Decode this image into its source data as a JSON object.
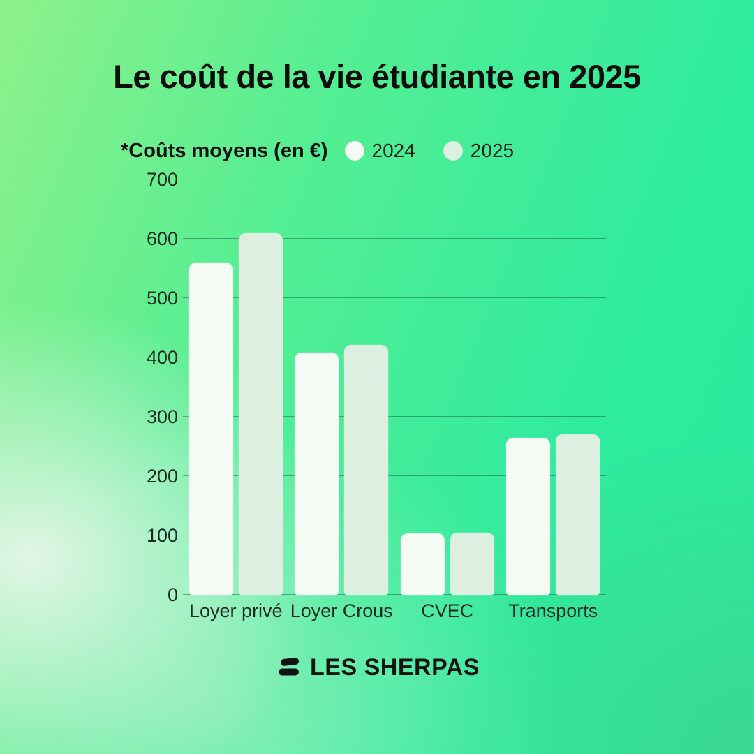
{
  "title": "Le coût de la vie étudiante en 2025",
  "legend": {
    "note": "*Coûts moyens (en €)",
    "items": [
      {
        "label": "2024",
        "color": "#f3fbf4"
      },
      {
        "label": "2025",
        "color": "#dcefe1"
      }
    ]
  },
  "chart_data": {
    "type": "bar",
    "title": "Le coût de la vie étudiante en 2025",
    "subtitle_note": "*Coûts moyens (en €)",
    "categories": [
      "Loyer privé",
      "Loyer Crous",
      "CVEC",
      "Transports"
    ],
    "series": [
      {
        "name": "2024",
        "color": "#f3fbf4",
        "values": [
          560,
          408,
          103,
          265
        ]
      },
      {
        "name": "2025",
        "color": "#dcefe1",
        "values": [
          610,
          421,
          105,
          271
        ]
      }
    ],
    "xlabel": "",
    "ylabel": "",
    "ylim": [
      0,
      700
    ],
    "yticks": [
      0,
      100,
      200,
      300,
      400,
      500,
      600,
      700
    ],
    "grid": true,
    "legend_position": "top-left"
  },
  "footer": {
    "brand": "LES SHERPAS"
  },
  "colors": {
    "background_top_left": "#8ff18a",
    "background_top_right": "#2deb9e",
    "background_bottom_left": "#ebf6ec",
    "background_bottom_right": "#46c887",
    "text": "#0a0e0c",
    "gridline": "rgba(16,70,46,0.42)",
    "bar_2024": "#f3fbf4",
    "bar_2025": "#dcefe1",
    "logo": "#101411"
  }
}
